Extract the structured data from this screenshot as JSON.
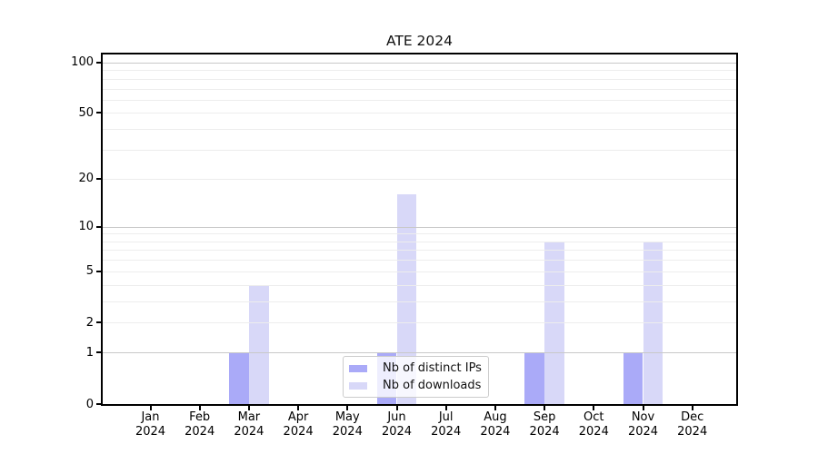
{
  "chart_data": {
    "type": "bar",
    "title": "ATE 2024",
    "categories": [
      "Jan 2024",
      "Feb 2024",
      "Mar 2024",
      "Apr 2024",
      "May 2024",
      "Jun 2024",
      "Jul 2024",
      "Aug 2024",
      "Sep 2024",
      "Oct 2024",
      "Nov 2024",
      "Dec 2024"
    ],
    "series": [
      {
        "name": "Nb of distinct IPs",
        "color": "#aaaaf8",
        "values": [
          0,
          0,
          1,
          0,
          0,
          1,
          0,
          0,
          1,
          0,
          1,
          0
        ]
      },
      {
        "name": "Nb of downloads",
        "color": "#d8d8f8",
        "values": [
          0,
          0,
          4,
          0,
          0,
          16,
          0,
          0,
          8,
          0,
          8,
          0
        ]
      }
    ],
    "xlabel": "",
    "ylabel": "",
    "yscale": "log1p",
    "ylim": [
      0,
      112
    ],
    "yticks": [
      0,
      1,
      2,
      5,
      10,
      20,
      50,
      100
    ],
    "grid": {
      "major": [
        1,
        10,
        100
      ],
      "minor": [
        2,
        3,
        4,
        5,
        6,
        7,
        8,
        9,
        20,
        30,
        40,
        50,
        60,
        70,
        80,
        90
      ]
    },
    "legend": {
      "position": "inside-bottom-center"
    }
  }
}
